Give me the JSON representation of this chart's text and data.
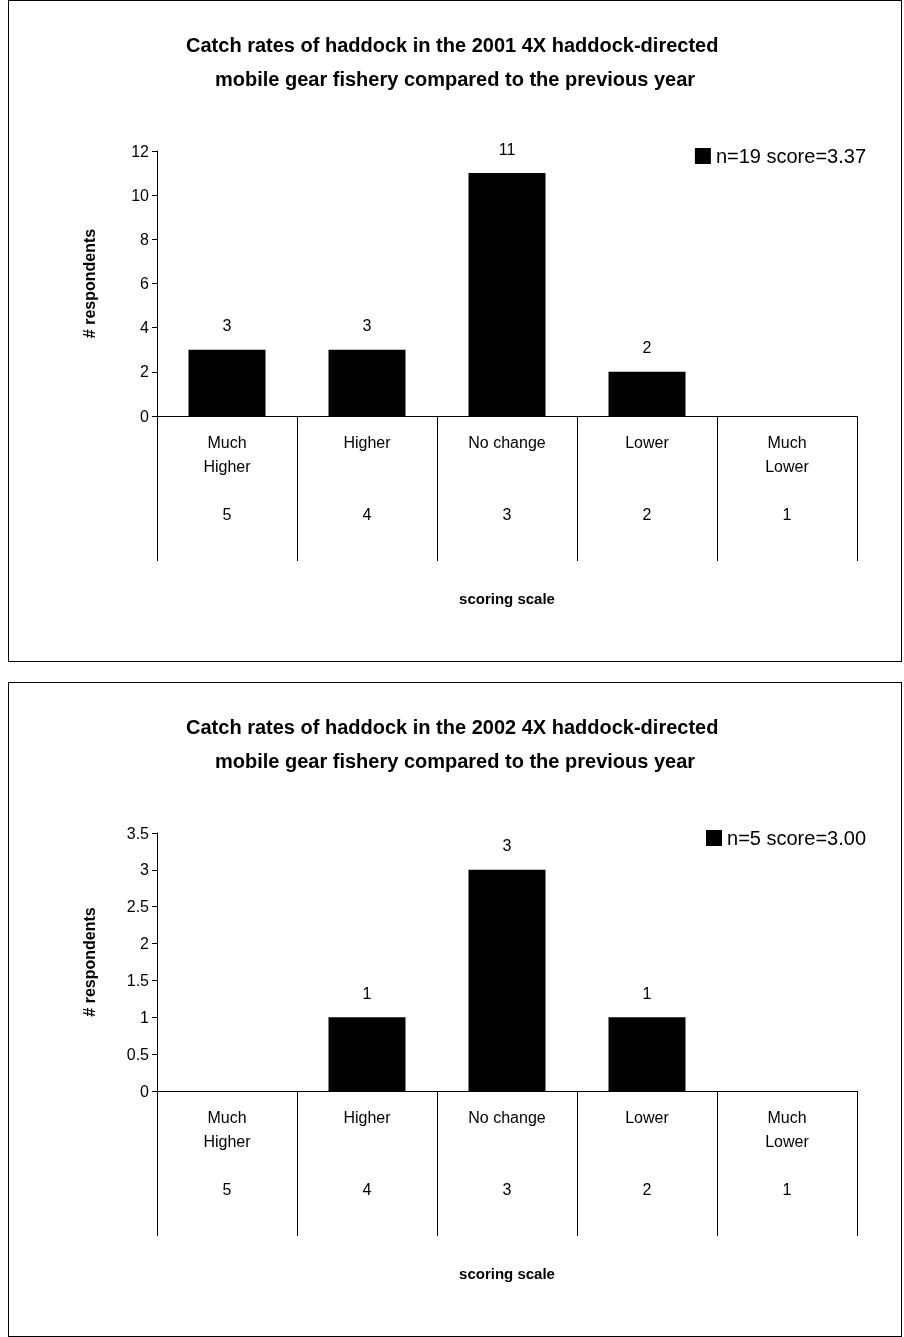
{
  "chart_data": [
    {
      "type": "bar",
      "title": "Catch rates of haddock in the 2001 4X haddock-directed mobile gear fishery compared to the previous year",
      "xlabel": "scoring scale",
      "ylabel": "# respondents",
      "categories": [
        "Much\nHigher\n\n5",
        "Higher\n\n\n4",
        "No change\n\n\n3",
        "Lower\n\n\n2",
        "Much\nLower\n\n1"
      ],
      "series": [
        {
          "name": "n=19 score=3.37",
          "color": "#000000",
          "values": [
            3,
            3,
            11,
            2,
            0
          ],
          "value_labels": [
            "3",
            "3",
            "11",
            "2",
            null
          ]
        }
      ],
      "ylim": [
        0,
        12
      ],
      "yticks": [
        0,
        2,
        4,
        6,
        8,
        10,
        12
      ],
      "grid": false,
      "legend": "top right"
    },
    {
      "type": "bar",
      "title": "Catch rates of haddock in the 2002 4X haddock-directed mobile gear fishery compared to the previous year",
      "xlabel": "scoring scale",
      "ylabel": "# respondents",
      "categories": [
        "Much\nHigher\n\n5",
        "Higher\n\n\n4",
        "No change\n\n\n3",
        "Lower\n\n\n2",
        "Much\nLower\n\n1"
      ],
      "series": [
        {
          "name": "n=5 score=3.00",
          "color": "#000000",
          "values": [
            0,
            1,
            3,
            1,
            0
          ],
          "value_labels": [
            null,
            "1",
            "3",
            "1",
            null
          ]
        }
      ],
      "ylim": [
        0,
        3.5
      ],
      "yticks": [
        0,
        0.5,
        1,
        1.5,
        2,
        2.5,
        3,
        3.5
      ],
      "grid": false,
      "legend": "top right"
    }
  ]
}
